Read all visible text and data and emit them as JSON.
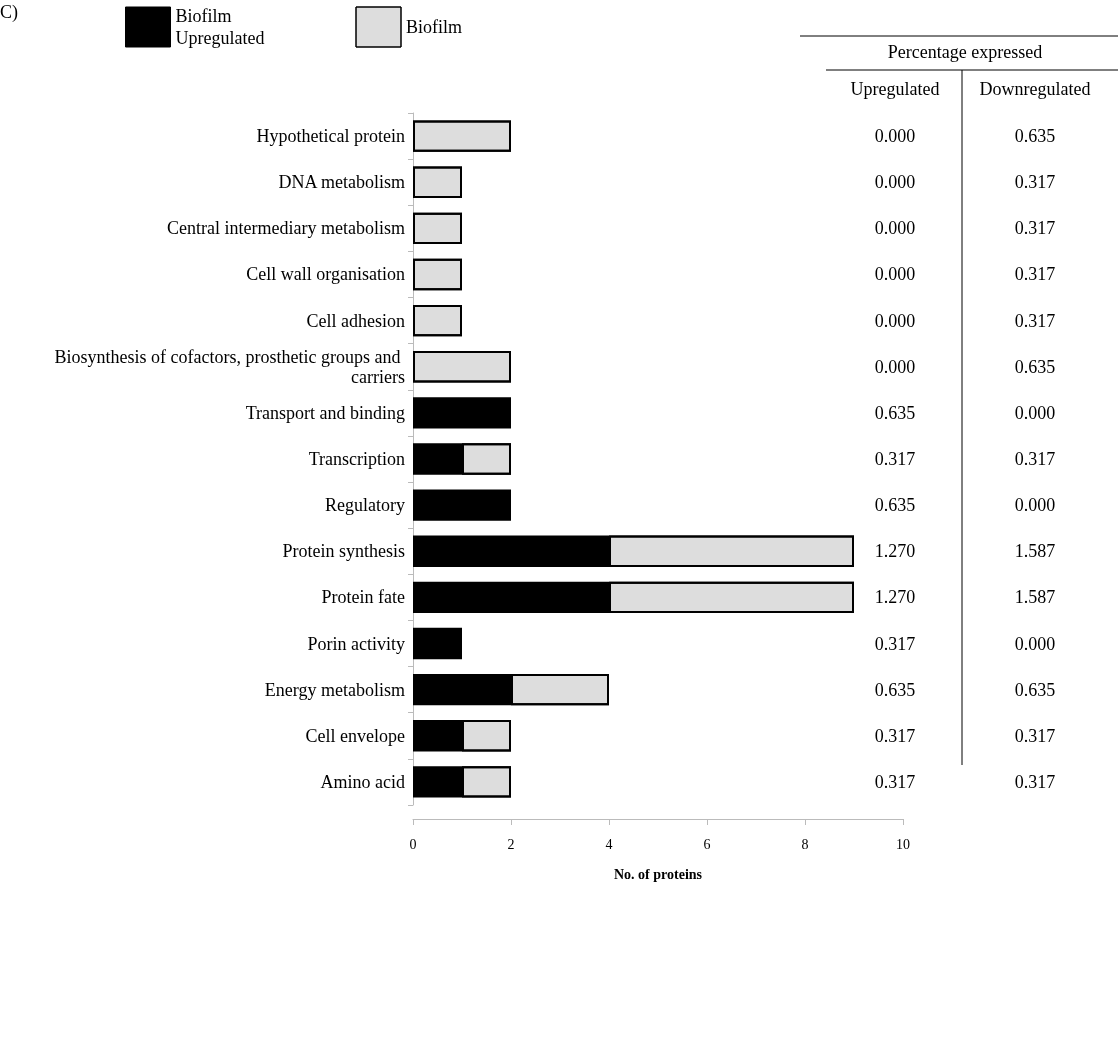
{
  "chart_data": {
    "type": "bar",
    "orientation": "horizontal",
    "stacked": true,
    "xlabel": "No. of proteins",
    "categories": [
      "Hypothetical protein",
      "DNA metabolism",
      "Central intermediary metabolism",
      "Cell wall organisation",
      "Cell adhesion",
      "Biosynthesis of cofactors, prosthetic groups and carriers",
      "Transport and binding",
      "Transcription",
      "Regulatory",
      "Protein synthesis",
      "Protein fate",
      "Porin activity",
      "Energy metabolism",
      "Cell envelope",
      "Amino acid"
    ],
    "series": [
      {
        "name": "Biofilm Upregulated",
        "color": "#000000",
        "values": [
          0,
          0,
          0,
          0,
          0,
          0,
          2,
          1,
          2,
          4,
          4,
          1,
          2,
          1,
          1
        ]
      },
      {
        "name": "Biofilm",
        "color": "#dddddd",
        "values": [
          2,
          1,
          1,
          1,
          1,
          2,
          0,
          1,
          0,
          5,
          5,
          0,
          2,
          1,
          1
        ]
      }
    ],
    "xlim": [
      0,
      10
    ],
    "xticks": [
      0,
      2,
      4,
      6,
      8,
      10
    ],
    "grid": false,
    "legend": "top left",
    "annotations": [
      "C)",
      "Percentage expressed",
      "Upregulated",
      "Downregulated",
      "0.000",
      "0.000",
      "0.000",
      "0.000",
      "0.000",
      "0.000",
      "0.635",
      "0.317",
      "0.635",
      "1.270",
      "1.270",
      "0.317",
      "0.635",
      "0.317",
      "0.317",
      "0.635",
      "0.317",
      "0.317",
      "0.317",
      "0.317",
      "0.635",
      "0.000",
      "0.317",
      "0.000",
      "1.587",
      "1.587",
      "0.000",
      "0.635",
      "0.317",
      "0.317"
    ]
  }
}
